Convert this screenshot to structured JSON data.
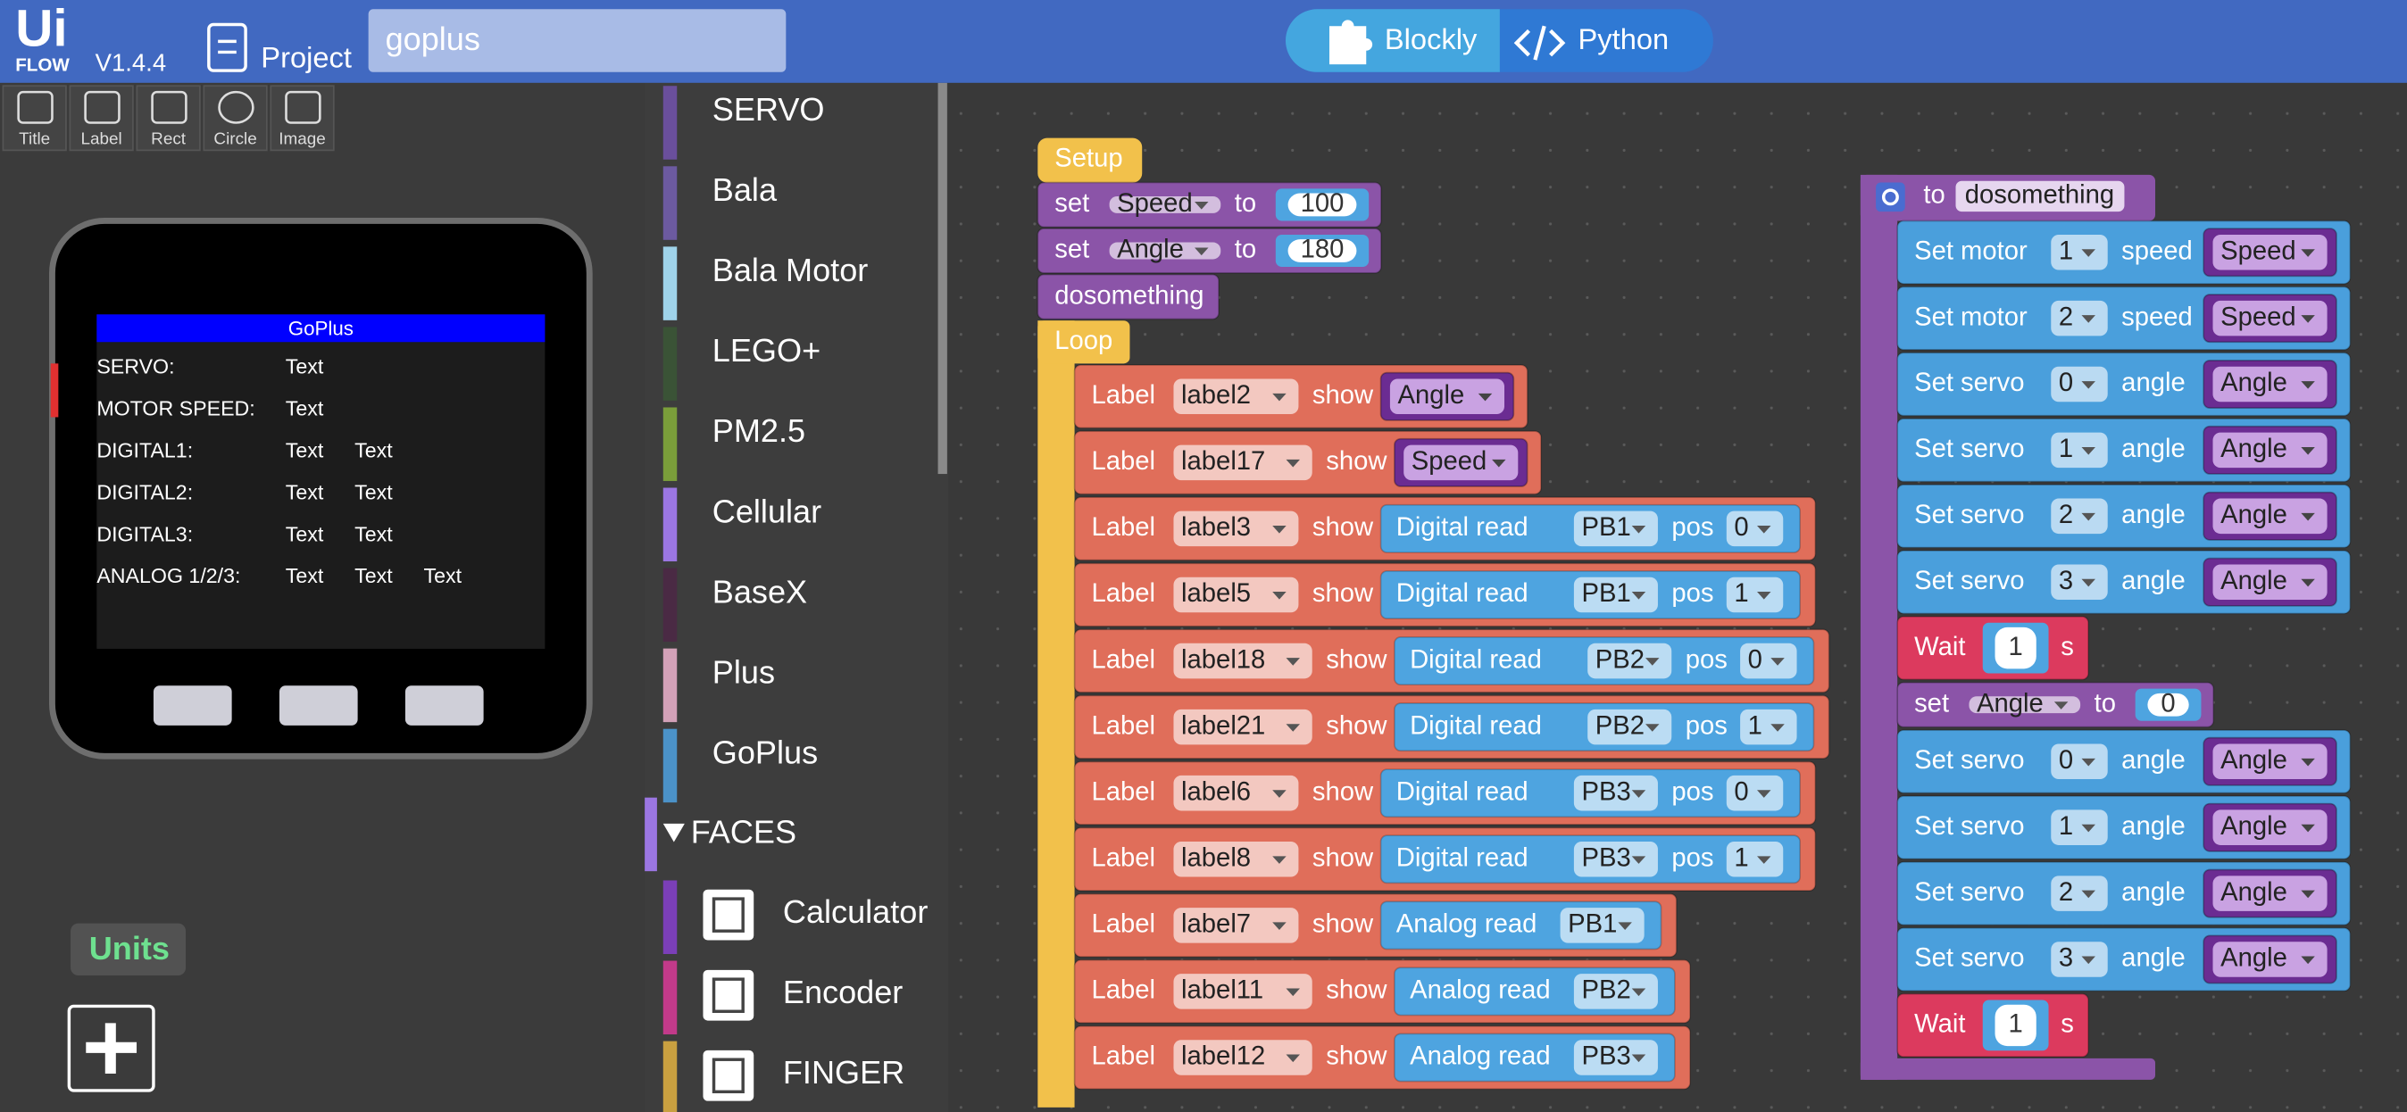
{
  "header": {
    "logo": "Ui",
    "logo_sub": "FLOW",
    "version": "V1.4.4",
    "project": "Project",
    "project_name": "goplus",
    "tabs": [
      "Blockly",
      "Python"
    ]
  },
  "toolbar": [
    "Title",
    "Label",
    "Rect",
    "Circle",
    "Image"
  ],
  "device": {
    "title": "GoPlus",
    "rows": [
      [
        "SERVO:",
        "Text"
      ],
      [
        "MOTOR SPEED:",
        "Text"
      ],
      [
        "DIGITAL1:",
        "Text",
        "Text"
      ],
      [
        "DIGITAL2:",
        "Text",
        "Text"
      ],
      [
        "DIGITAL3:",
        "Text",
        "Text"
      ],
      [
        "ANALOG 1/2/3:",
        "Text",
        "Text",
        "Text"
      ]
    ]
  },
  "units": "Units",
  "categories": {
    "items": [
      "SERVO",
      "Bala",
      "Bala Motor",
      "LEGO+",
      "PM2.5",
      "Cellular",
      "BaseX",
      "Plus",
      "GoPlus"
    ],
    "faces_header": "FACES",
    "faces": [
      "Calculator",
      "Encoder",
      "FINGER"
    ]
  },
  "program": {
    "setup": {
      "hat": "Setup",
      "statements": [
        [
          "set",
          "Speed",
          "to",
          "100"
        ],
        [
          "set",
          "Angle",
          "to",
          "180"
        ],
        [
          "dosomething"
        ]
      ]
    },
    "loop": {
      "hat": "Loop",
      "statements": [
        [
          "Label",
          "label2",
          "show",
          "Angle"
        ],
        [
          "Label",
          "label17",
          "show",
          "Speed"
        ],
        [
          "Label",
          "label3",
          "show",
          "Digital read",
          "PB1",
          "pos",
          "0"
        ],
        [
          "Label",
          "label5",
          "show",
          "Digital read",
          "PB1",
          "pos",
          "1"
        ],
        [
          "Label",
          "label18",
          "show",
          "Digital read",
          "PB2",
          "pos",
          "0"
        ],
        [
          "Label",
          "label21",
          "show",
          "Digital read",
          "PB2",
          "pos",
          "1"
        ],
        [
          "Label",
          "label6",
          "show",
          "Digital read",
          "PB3",
          "pos",
          "0"
        ],
        [
          "Label",
          "label8",
          "show",
          "Digital read",
          "PB3",
          "pos",
          "1"
        ],
        [
          "Label",
          "label7",
          "show",
          "Analog read",
          "PB1"
        ],
        [
          "Label",
          "label11",
          "show",
          "Analog read",
          "PB2"
        ],
        [
          "Label",
          "label12",
          "show",
          "Analog read",
          "PB3"
        ]
      ]
    },
    "function": {
      "hat": [
        "to",
        "dosomething"
      ],
      "statements": [
        [
          "Set motor",
          "1",
          "speed",
          "Speed"
        ],
        [
          "Set motor",
          "2",
          "speed",
          "Speed"
        ],
        [
          "Set servo",
          "0",
          "angle",
          "Angle"
        ],
        [
          "Set servo",
          "1",
          "angle",
          "Angle"
        ],
        [
          "Set servo",
          "2",
          "angle",
          "Angle"
        ],
        [
          "Set servo",
          "3",
          "angle",
          "Angle"
        ],
        [
          "Wait",
          "1",
          "s"
        ],
        [
          "set",
          "Angle",
          "to",
          "0"
        ],
        [
          "Set servo",
          "0",
          "angle",
          "Angle"
        ],
        [
          "Set servo",
          "1",
          "angle",
          "Angle"
        ],
        [
          "Set servo",
          "2",
          "angle",
          "Angle"
        ],
        [
          "Set servo",
          "3",
          "angle",
          "Angle"
        ],
        [
          "Wait",
          "1",
          "s"
        ]
      ]
    }
  }
}
